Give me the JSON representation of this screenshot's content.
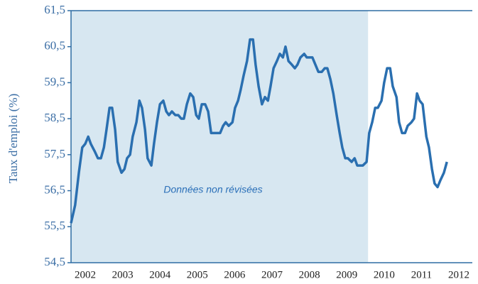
{
  "chart_data": {
    "type": "line",
    "ylabel": "Taux d'emploi (%)",
    "annotation": "Données non révisées",
    "shade": [
      2002.12,
      2010.07
    ],
    "shade_color": "#d7e7f1",
    "xlim": [
      2002.12,
      2012.86
    ],
    "ylim": [
      54.5,
      61.5
    ],
    "yticks": [
      {
        "value": 54.5,
        "label": "54,5"
      },
      {
        "value": 55.5,
        "label": "55,5"
      },
      {
        "value": 56.5,
        "label": "56,5"
      },
      {
        "value": 57.5,
        "label": "57,5"
      },
      {
        "value": 58.5,
        "label": "58,5"
      },
      {
        "value": 59.5,
        "label": "59,5"
      },
      {
        "value": 60.5,
        "label": "60,5"
      },
      {
        "value": 61.5,
        "label": "61,5"
      }
    ],
    "xticks": [
      {
        "value": 2002.5,
        "label": "2002"
      },
      {
        "value": 2003.5,
        "label": "2003"
      },
      {
        "value": 2004.5,
        "label": "2004"
      },
      {
        "value": 2005.5,
        "label": "2005"
      },
      {
        "value": 2006.5,
        "label": "2006"
      },
      {
        "value": 2007.5,
        "label": "2007"
      },
      {
        "value": 2008.5,
        "label": "2008"
      },
      {
        "value": 2009.5,
        "label": "2009"
      },
      {
        "value": 2010.5,
        "label": "2010"
      },
      {
        "value": 2011.5,
        "label": "2011"
      },
      {
        "value": 2012.5,
        "label": "2012"
      }
    ],
    "x": [
      2002.12,
      2002.23,
      2002.33,
      2002.42,
      2002.5,
      2002.58,
      2002.65,
      2002.75,
      2002.84,
      2002.92,
      2003.0,
      2003.07,
      2003.15,
      2003.22,
      2003.3,
      2003.37,
      2003.47,
      2003.55,
      2003.62,
      2003.7,
      2003.77,
      2003.87,
      2003.95,
      2004.02,
      2004.1,
      2004.17,
      2004.27,
      2004.34,
      2004.42,
      2004.5,
      2004.59,
      2004.67,
      2004.74,
      2004.82,
      2004.91,
      2004.99,
      2005.07,
      2005.14,
      2005.22,
      2005.31,
      2005.39,
      2005.47,
      2005.54,
      2005.62,
      2005.71,
      2005.79,
      2005.87,
      2005.94,
      2006.04,
      2006.11,
      2006.19,
      2006.26,
      2006.34,
      2006.44,
      2006.51,
      2006.59,
      2006.66,
      2006.74,
      2006.83,
      2006.91,
      2006.99,
      2007.06,
      2007.14,
      2007.23,
      2007.31,
      2007.39,
      2007.46,
      2007.54,
      2007.63,
      2007.71,
      2007.79,
      2007.86,
      2007.94,
      2008.03,
      2008.11,
      2008.18,
      2008.26,
      2008.36,
      2008.43,
      2008.51,
      2008.58,
      2008.66,
      2008.74,
      2008.83,
      2008.91,
      2008.98,
      2009.06,
      2009.14,
      2009.23,
      2009.31,
      2009.38,
      2009.46,
      2009.53,
      2009.63,
      2009.71,
      2009.78,
      2009.86,
      2009.93,
      2010.03,
      2010.1,
      2010.18,
      2010.26,
      2010.33,
      2010.43,
      2010.5,
      2010.58,
      2010.66,
      2010.73,
      2010.83,
      2010.9,
      2010.98,
      2011.06,
      2011.13,
      2011.23,
      2011.3,
      2011.38,
      2011.45,
      2011.53,
      2011.63,
      2011.7,
      2011.78,
      2011.85,
      2011.93,
      2012.01,
      2012.1,
      2012.18
    ],
    "series": [
      {
        "color": "#2a6fb0",
        "values": [
          55.6,
          56.1,
          57.0,
          57.7,
          57.8,
          58.0,
          57.8,
          57.6,
          57.4,
          57.4,
          57.7,
          58.2,
          58.8,
          58.8,
          58.2,
          57.3,
          57.0,
          57.1,
          57.4,
          57.5,
          58.0,
          58.4,
          59.0,
          58.8,
          58.2,
          57.4,
          57.2,
          57.8,
          58.4,
          58.9,
          59.0,
          58.7,
          58.6,
          58.7,
          58.6,
          58.6,
          58.5,
          58.5,
          58.9,
          59.2,
          59.1,
          58.6,
          58.5,
          58.9,
          58.9,
          58.7,
          58.1,
          58.1,
          58.1,
          58.1,
          58.3,
          58.4,
          58.3,
          58.4,
          58.8,
          59.0,
          59.3,
          59.7,
          60.1,
          60.7,
          60.7,
          60.0,
          59.4,
          58.9,
          59.1,
          59.0,
          59.4,
          59.9,
          60.1,
          60.3,
          60.2,
          60.5,
          60.1,
          60.0,
          59.9,
          60.0,
          60.2,
          60.3,
          60.2,
          60.2,
          60.2,
          60.0,
          59.8,
          59.8,
          59.9,
          59.9,
          59.6,
          59.2,
          58.6,
          58.1,
          57.7,
          57.4,
          57.4,
          57.3,
          57.4,
          57.2,
          57.2,
          57.2,
          57.3,
          58.1,
          58.4,
          58.8,
          58.8,
          59.0,
          59.5,
          59.9,
          59.9,
          59.4,
          59.1,
          58.4,
          58.1,
          58.1,
          58.3,
          58.4,
          58.5,
          59.2,
          59.0,
          58.9,
          58.0,
          57.7,
          57.1,
          56.7,
          56.6,
          56.8,
          57.0,
          57.3
        ]
      }
    ]
  }
}
